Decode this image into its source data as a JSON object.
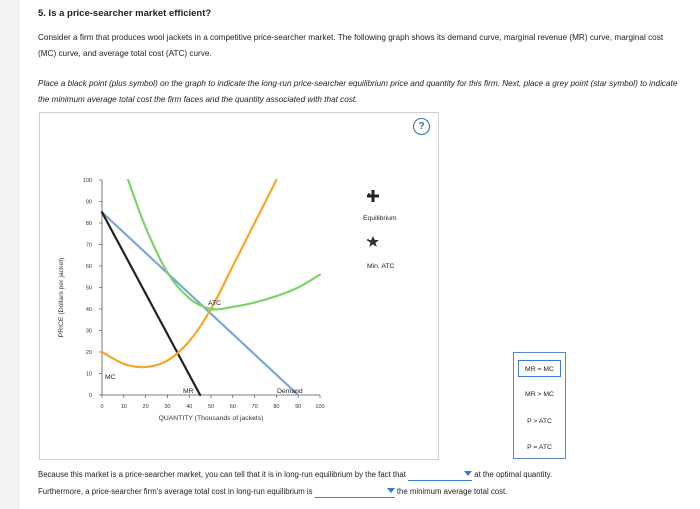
{
  "question": {
    "title": "5. Is a price-searcher market efficient?",
    "intro": "Consider a firm that produces wool jackets in a competitive price-searcher market. The following graph shows its demand curve, marginal revenue (MR) curve, marginal cost (MC) curve, and average total cost (ATC) curve.",
    "instructions": "Place a black point (plus symbol) on the graph to indicate the long-run price-searcher equilibrium price and quantity for this firm. Next, place a grey point (star symbol) to indicate the minimum average total cost the firm faces and the quantity associated with that cost."
  },
  "graph": {
    "help_symbol": "?",
    "legend": {
      "equilibrium": "Equilibrium",
      "min_atc": "Min. ATC"
    },
    "curve_labels": {
      "atc": "ATC",
      "mc": "MC",
      "mr": "MR",
      "demand": "Demand"
    }
  },
  "chart_data": {
    "type": "line",
    "xlabel": "QUANTITY (Thousands of jackets)",
    "ylabel": "PRICE (Dollars per jacket)",
    "xlim": [
      0,
      100
    ],
    "ylim": [
      0,
      100
    ],
    "x_ticks": [
      "0",
      "10",
      "20",
      "30",
      "40",
      "50",
      "60",
      "70",
      "80",
      "90",
      "100"
    ],
    "y_ticks": [
      "0",
      "10",
      "20",
      "30",
      "40",
      "50",
      "60",
      "70",
      "80",
      "90",
      "100"
    ],
    "series": [
      {
        "name": "Demand",
        "color": "#7ca6d6",
        "x": [
          0,
          90
        ],
        "y": [
          85,
          0
        ]
      },
      {
        "name": "MR",
        "color": "#222222",
        "x": [
          0,
          45
        ],
        "y": [
          85,
          0
        ]
      },
      {
        "name": "MC",
        "color": "#f5a623",
        "x": [
          0,
          10,
          20,
          30,
          40,
          50,
          60,
          70,
          80
        ],
        "y": [
          20,
          14.5,
          13,
          16,
          25,
          40,
          60,
          80,
          100
        ]
      },
      {
        "name": "ATC",
        "color": "#7dd36b",
        "x": [
          12,
          20,
          30,
          40,
          50,
          60,
          70,
          80,
          90,
          100
        ],
        "y": [
          100,
          78,
          57,
          45,
          40,
          41,
          43,
          46,
          50,
          56
        ]
      }
    ],
    "grid": false
  },
  "dropdown_options": [
    "MR = MC",
    "MR > MC",
    "P > ATC",
    "P = ATC"
  ],
  "bottom": {
    "line1_before": "Because this market is a price-searcher market, you can tell that it is in long-run equilibrium by the fact that",
    "line1_after": "at the optimal quantity.",
    "line2_before": "Furthermore, a price-searcher firm's average total cost in long-run equilibrium is",
    "line2_after": "the minimum average total cost."
  }
}
